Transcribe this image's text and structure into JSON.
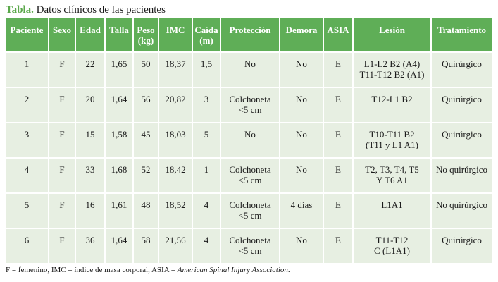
{
  "caption": {
    "lead": "Tabla.",
    "text": "Datos clínicos de las pacientes"
  },
  "headers": [
    [
      "Paciente"
    ],
    [
      "Sexo"
    ],
    [
      "Edad"
    ],
    [
      "Talla"
    ],
    [
      "Peso",
      "(kg)"
    ],
    [
      "IMC"
    ],
    [
      "Caída",
      "(m)"
    ],
    [
      "Protección"
    ],
    [
      "Demora"
    ],
    [
      "ASIA"
    ],
    [
      "Lesión"
    ],
    [
      "Tratamiento"
    ]
  ],
  "rows": [
    [
      [
        "1"
      ],
      [
        "F"
      ],
      [
        "22"
      ],
      [
        "1,65"
      ],
      [
        "50"
      ],
      [
        "18,37"
      ],
      [
        "1,5"
      ],
      [
        "No"
      ],
      [
        "No"
      ],
      [
        "E"
      ],
      [
        "L1-L2 B2 (A4)",
        "T11-T12  B2 (A1)"
      ],
      [
        "Quirúrgico"
      ]
    ],
    [
      [
        "2"
      ],
      [
        "F"
      ],
      [
        "20"
      ],
      [
        "1,64"
      ],
      [
        "56"
      ],
      [
        "20,82"
      ],
      [
        "3"
      ],
      [
        "Colchoneta",
        "<5 cm"
      ],
      [
        "No"
      ],
      [
        "E"
      ],
      [
        "T12-L1 B2"
      ],
      [
        "Quirúrgico"
      ]
    ],
    [
      [
        "3"
      ],
      [
        "F"
      ],
      [
        "15"
      ],
      [
        "1,58"
      ],
      [
        "45"
      ],
      [
        "18,03"
      ],
      [
        "5"
      ],
      [
        "No"
      ],
      [
        "No"
      ],
      [
        "E"
      ],
      [
        "T10-T11 B2",
        "(T11 y L1 A1)"
      ],
      [
        "Quirúrgico"
      ]
    ],
    [
      [
        "4"
      ],
      [
        "F"
      ],
      [
        "33"
      ],
      [
        "1,68"
      ],
      [
        "52"
      ],
      [
        "18,42"
      ],
      [
        "1"
      ],
      [
        "Colchoneta",
        "<5 cm"
      ],
      [
        "No"
      ],
      [
        "E"
      ],
      [
        "T2, T3, T4, T5",
        "Y T6 A1"
      ],
      [
        "No quirúrgico"
      ]
    ],
    [
      [
        "5"
      ],
      [
        "F"
      ],
      [
        "16"
      ],
      [
        "1,61"
      ],
      [
        "48"
      ],
      [
        "18,52"
      ],
      [
        "4"
      ],
      [
        "Colchoneta",
        "<5 cm"
      ],
      [
        "4 días"
      ],
      [
        "E"
      ],
      [
        "L1A1"
      ],
      [
        "No quirúrgico"
      ]
    ],
    [
      [
        "6"
      ],
      [
        "F"
      ],
      [
        "36"
      ],
      [
        "1,64"
      ],
      [
        "58"
      ],
      [
        "21,56"
      ],
      [
        "4"
      ],
      [
        "Colchoneta",
        "<5 cm"
      ],
      [
        "No"
      ],
      [
        "E"
      ],
      [
        "T11-T12",
        "C (L1A1)"
      ],
      [
        "Quirúrgico"
      ]
    ]
  ],
  "footnote": {
    "text": "F = femenino, IMC = índice de masa corporal, ASIA = ",
    "emphasis": "American Spinal Injury Association",
    "end": "."
  }
}
